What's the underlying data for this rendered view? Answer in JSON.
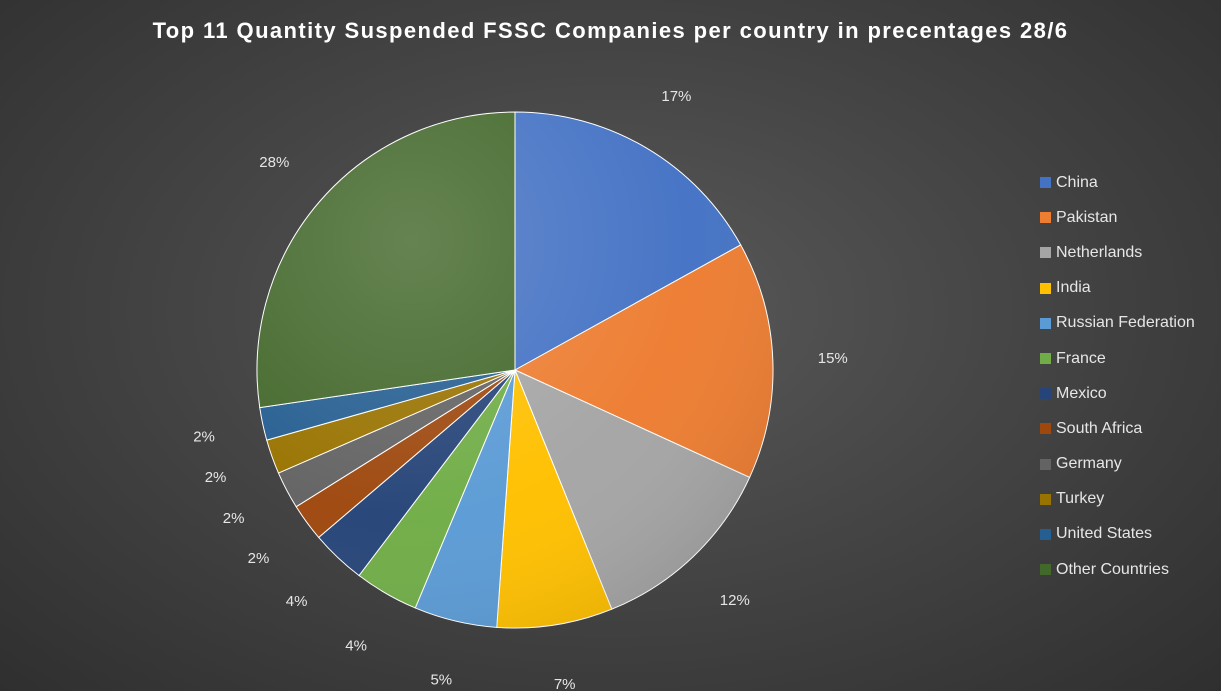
{
  "chart_data": {
    "type": "pie",
    "title": "Top 11 Quantity Suspended FSSC Companies per country in precentages 28/6",
    "categories": [
      "China",
      "Pakistan",
      "Netherlands",
      "India",
      "Russian Federation",
      "France",
      "Mexico",
      "South Africa",
      "Germany",
      "Turkey",
      "United States",
      "Other Countries"
    ],
    "values": [
      17.3,
      15.2,
      12.3,
      7.4,
      5.3,
      4.1,
      3.5,
      2.4,
      2.4,
      2.2,
      2.1,
      27.9
    ],
    "data_labels": [
      "17%",
      "15%",
      "12%",
      "7%",
      "5%",
      "4%",
      "4%",
      "2%",
      "2%",
      "2%",
      "2%",
      "28%"
    ],
    "colors": [
      "#4472c4",
      "#ed7d31",
      "#a5a5a5",
      "#ffc000",
      "#5b9bd5",
      "#70ad47",
      "#264478",
      "#9e480e",
      "#636363",
      "#997300",
      "#255e91",
      "#43682b"
    ],
    "legend_position": "right",
    "start_angle_deg": 0,
    "direction": "clockwise"
  }
}
